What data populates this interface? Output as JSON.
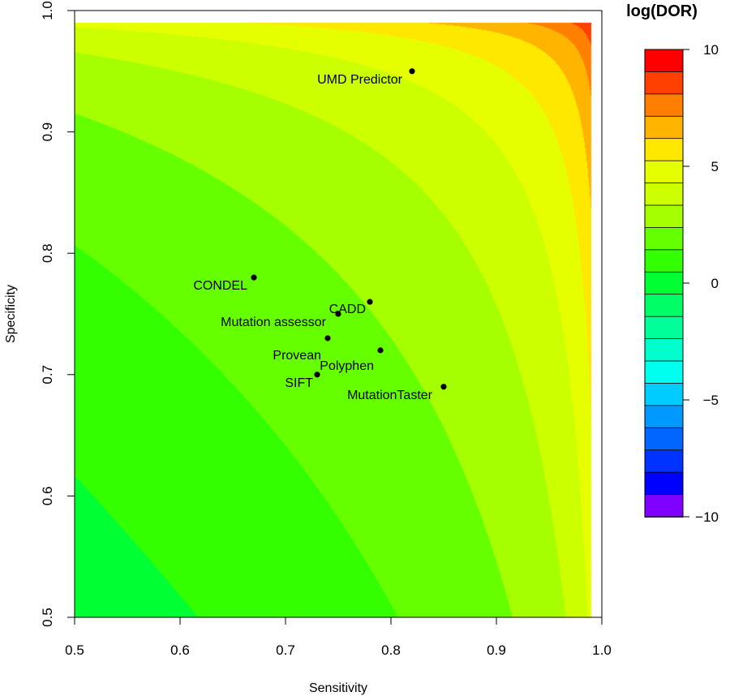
{
  "chart_data": {
    "type": "contour",
    "xlabel": "Sensitivity",
    "ylabel": "Specificity",
    "xlim": [
      0.5,
      1.0
    ],
    "ylim": [
      0.5,
      1.0
    ],
    "x_ticks": [
      0.5,
      0.6,
      0.7,
      0.8,
      0.9,
      1.0
    ],
    "y_ticks": [
      0.5,
      0.6,
      0.7,
      0.8,
      0.9,
      1.0
    ],
    "x_tick_labels": [
      "0.5",
      "0.6",
      "0.7",
      "0.8",
      "0.9",
      "1.0"
    ],
    "y_tick_labels": [
      "0.5",
      "0.6",
      "0.7",
      "0.8",
      "0.9",
      "1.0"
    ],
    "surface": "log(DOR)",
    "contour_levels": [
      -10,
      -9,
      -8,
      -7,
      -6,
      -5,
      -4,
      -3,
      -2,
      -1,
      0,
      1,
      2,
      3,
      4,
      5,
      6,
      7,
      8,
      9,
      10
    ],
    "points": [
      {
        "label": "UMD Predictor",
        "x": 0.82,
        "y": 0.95
      },
      {
        "label": "CONDEL",
        "x": 0.67,
        "y": 0.78
      },
      {
        "label": "CADD",
        "x": 0.78,
        "y": 0.76
      },
      {
        "label": "Mutation assessor",
        "x": 0.75,
        "y": 0.75
      },
      {
        "label": "Provean",
        "x": 0.74,
        "y": 0.73
      },
      {
        "label": "Polyphen",
        "x": 0.79,
        "y": 0.72
      },
      {
        "label": "SIFT",
        "x": 0.73,
        "y": 0.7
      },
      {
        "label": "MutationTaster",
        "x": 0.85,
        "y": 0.69
      }
    ],
    "legend": {
      "title": "log(DOR)",
      "min": -10,
      "max": 10,
      "tick_values": [
        10,
        5,
        0,
        -5,
        -10
      ],
      "tick_labels": [
        "10",
        "5",
        "0",
        "−5",
        "−10"
      ],
      "colors": [
        "#ff0000",
        "#ff4000",
        "#ff8000",
        "#ffb400",
        "#ffe800",
        "#e6ff00",
        "#ccff00",
        "#a5ff00",
        "#66ff00",
        "#33ff00",
        "#00ff33",
        "#00ff66",
        "#00ff99",
        "#00ffcc",
        "#00ffee",
        "#00ccff",
        "#0099ff",
        "#0066ff",
        "#0033ff",
        "#0000ff",
        "#8000ff"
      ]
    }
  }
}
